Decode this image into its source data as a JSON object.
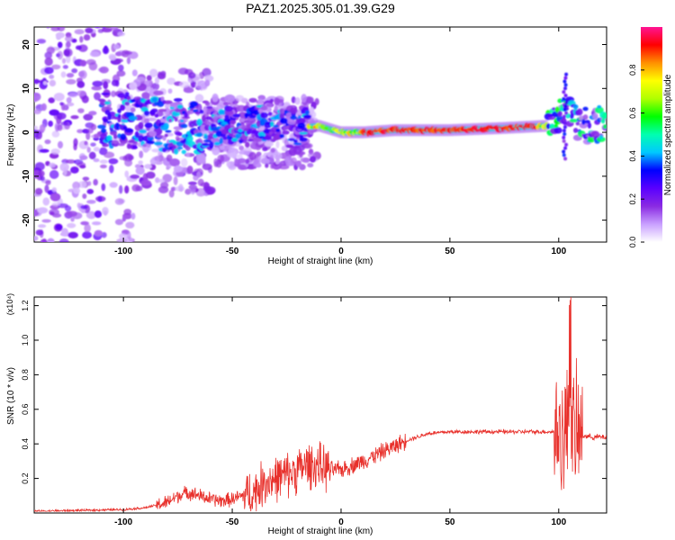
{
  "title": "PAZ1.2025.305.01.39.G29",
  "chart_data": [
    {
      "type": "heatmap",
      "xlabel": "Height of straight line (km)",
      "ylabel": "Frequency (Hz)",
      "xlim": [
        -141,
        122
      ],
      "ylim": [
        -25,
        24
      ],
      "x_ticks": [
        -100,
        -50,
        0,
        50,
        100
      ],
      "y_ticks": [
        -20,
        -10,
        0,
        10,
        20
      ],
      "colorbar": {
        "label": "Normalized spectral amplitude",
        "range": [
          0,
          1
        ],
        "ticks": [
          "0.0",
          "0.2",
          "0.4",
          "0.6",
          "0.8"
        ],
        "colormap": [
          "#ffffff",
          "#c9a0ff",
          "#8a2be2",
          "#5a00ff",
          "#0000ff",
          "#00c8ff",
          "#00ffb0",
          "#00ff00",
          "#b0ff00",
          "#ffff00",
          "#ff9000",
          "#ff0000",
          "#ff1493"
        ]
      },
      "ridge": [
        {
          "x": -100,
          "f": 3
        },
        {
          "x": -90,
          "f": 2
        },
        {
          "x": -75,
          "f": 1.5
        },
        {
          "x": -60,
          "f": 1
        },
        {
          "x": -45,
          "f": 2
        },
        {
          "x": -30,
          "f": 2.5
        },
        {
          "x": -20,
          "f": 1
        },
        {
          "x": -10,
          "f": 1.5
        },
        {
          "x": 0,
          "f": 0
        },
        {
          "x": 10,
          "f": 0
        },
        {
          "x": 25,
          "f": 0.5
        },
        {
          "x": 50,
          "f": 0.5
        },
        {
          "x": 75,
          "f": 1
        },
        {
          "x": 95,
          "f": 1.5
        },
        {
          "x": 102,
          "f": 5
        },
        {
          "x": 110,
          "f": 1.5
        },
        {
          "x": 122,
          "f": 2
        }
      ]
    },
    {
      "type": "line",
      "xlabel": "Height of straight line (km)",
      "ylabel": "SNR (10 * v/v)",
      "y_multiplier_label": "(x10⁴)",
      "xlim": [
        -141,
        122
      ],
      "ylim": [
        0,
        1.25
      ],
      "x_ticks": [
        -100,
        -50,
        0,
        50,
        100
      ],
      "y_ticks": [
        0.2,
        0.4,
        0.6,
        0.8,
        1.0,
        1.2
      ],
      "color": "#e8302b",
      "series": [
        {
          "name": "SNR",
          "x": [
            -141,
            -100,
            -90,
            -80,
            -75,
            -70,
            -65,
            -60,
            -55,
            -50,
            -40,
            -35,
            -30,
            -25,
            -20,
            -15,
            -10,
            -5,
            0,
            10,
            20,
            30,
            40,
            50,
            60,
            70,
            80,
            90,
            98,
            102,
            105,
            107,
            110,
            115,
            122
          ],
          "y": [
            0.01,
            0.02,
            0.03,
            0.06,
            0.1,
            0.12,
            0.1,
            0.08,
            0.07,
            0.08,
            0.12,
            0.18,
            0.2,
            0.22,
            0.25,
            0.28,
            0.27,
            0.25,
            0.25,
            0.3,
            0.36,
            0.42,
            0.46,
            0.47,
            0.47,
            0.47,
            0.47,
            0.47,
            0.47,
            0.45,
            0.5,
            0.45,
            0.45,
            0.44,
            0.44
          ]
        }
      ]
    }
  ]
}
